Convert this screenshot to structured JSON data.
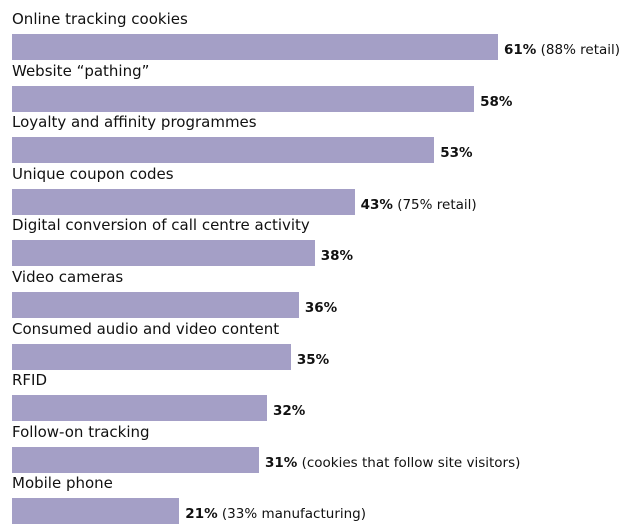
{
  "chart_data": {
    "type": "bar",
    "orientation": "horizontal",
    "title": "",
    "xlabel": "",
    "ylabel": "",
    "xlim": [
      0,
      75
    ],
    "grid": false,
    "legend": "none",
    "bar_color": "#a49fc6",
    "categories": [
      "Online tracking cookies",
      "Website “pathing”",
      "Loyalty and affinity programmes",
      "Unique coupon codes",
      "Digital conversion of call centre activity",
      "Video cameras",
      "Consumed audio and video content",
      "RFID",
      "Follow-on tracking",
      "Mobile phone"
    ],
    "values": [
      61,
      58,
      53,
      43,
      38,
      36,
      35,
      32,
      31,
      21
    ],
    "value_labels": [
      "61%",
      "58%",
      "53%",
      "43%",
      "38%",
      "36%",
      "35%",
      "32%",
      "31%",
      "21%"
    ],
    "notes": [
      "(88% retail)",
      "",
      "",
      "(75% retail)",
      "",
      "",
      "",
      "",
      "(cookies that follow site visitors)",
      "(33% manufacturing)"
    ]
  }
}
